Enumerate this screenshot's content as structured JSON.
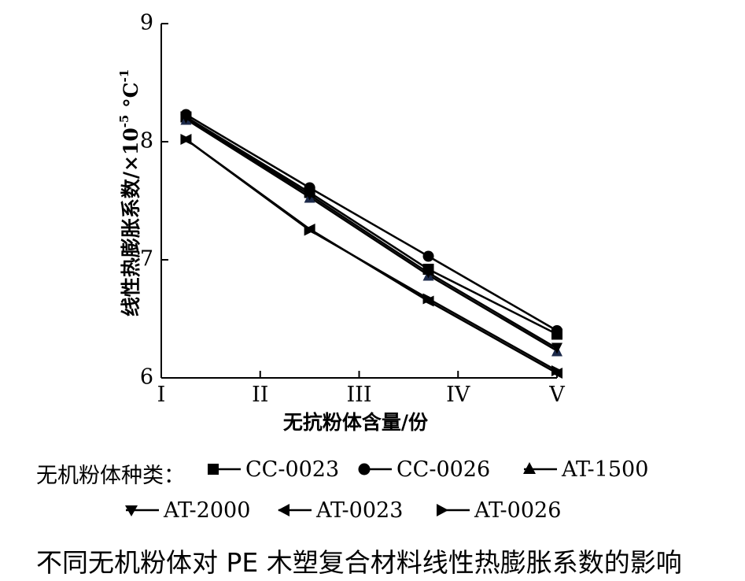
{
  "chart_data": {
    "type": "line",
    "xlabel": "无抗粉体含量/份",
    "ylabel": "线性热膨胀系数/×10⁻⁵ °C⁻¹",
    "ylabel_parts": {
      "main": "线性热膨胀系数/×10",
      "exp1": "-5",
      "unit": " °C",
      "exp2": "-1"
    },
    "categories": [
      "I",
      "II",
      "III",
      "IV",
      "V"
    ],
    "x_ticks": [
      "I",
      "II",
      "III",
      "IV",
      "V"
    ],
    "y_ticks": [
      "6",
      "7",
      "8",
      "9"
    ],
    "ylim": [
      6,
      9
    ],
    "grid": false,
    "legend_title": "无机粉体种类：",
    "legend_position": "bottom",
    "caption": "不同无机粉体对 PE 木塑复合材料线性热膨胀系数的影响",
    "series": [
      {
        "name": "CC-0023",
        "marker": "square",
        "x": [
          1.25,
          2.5,
          3.7,
          5
        ],
        "values": [
          8.21,
          7.57,
          6.92,
          6.37
        ]
      },
      {
        "name": "CC-0026",
        "marker": "circle",
        "x": [
          1.25,
          2.5,
          3.7,
          5
        ],
        "values": [
          8.23,
          7.61,
          7.03,
          6.4
        ]
      },
      {
        "name": "AT-1500",
        "marker": "triangle-up",
        "x": [
          1.25,
          2.5,
          3.7,
          5
        ],
        "values": [
          8.19,
          7.53,
          6.87,
          6.23
        ]
      },
      {
        "name": "AT-2000",
        "marker": "triangle-down",
        "x": [
          1.25,
          2.5,
          3.7,
          5
        ],
        "values": [
          8.2,
          7.55,
          6.89,
          6.25
        ]
      },
      {
        "name": "AT-0023",
        "marker": "triangle-left",
        "x": [
          1.25,
          2.5,
          3.7,
          5
        ],
        "values": [
          8.02,
          7.26,
          6.65,
          6.04
        ]
      },
      {
        "name": "AT-0026",
        "marker": "triangle-right",
        "x": [
          1.25,
          2.5,
          3.7,
          5
        ],
        "values": [
          8.02,
          7.25,
          6.67,
          6.06
        ]
      }
    ]
  }
}
